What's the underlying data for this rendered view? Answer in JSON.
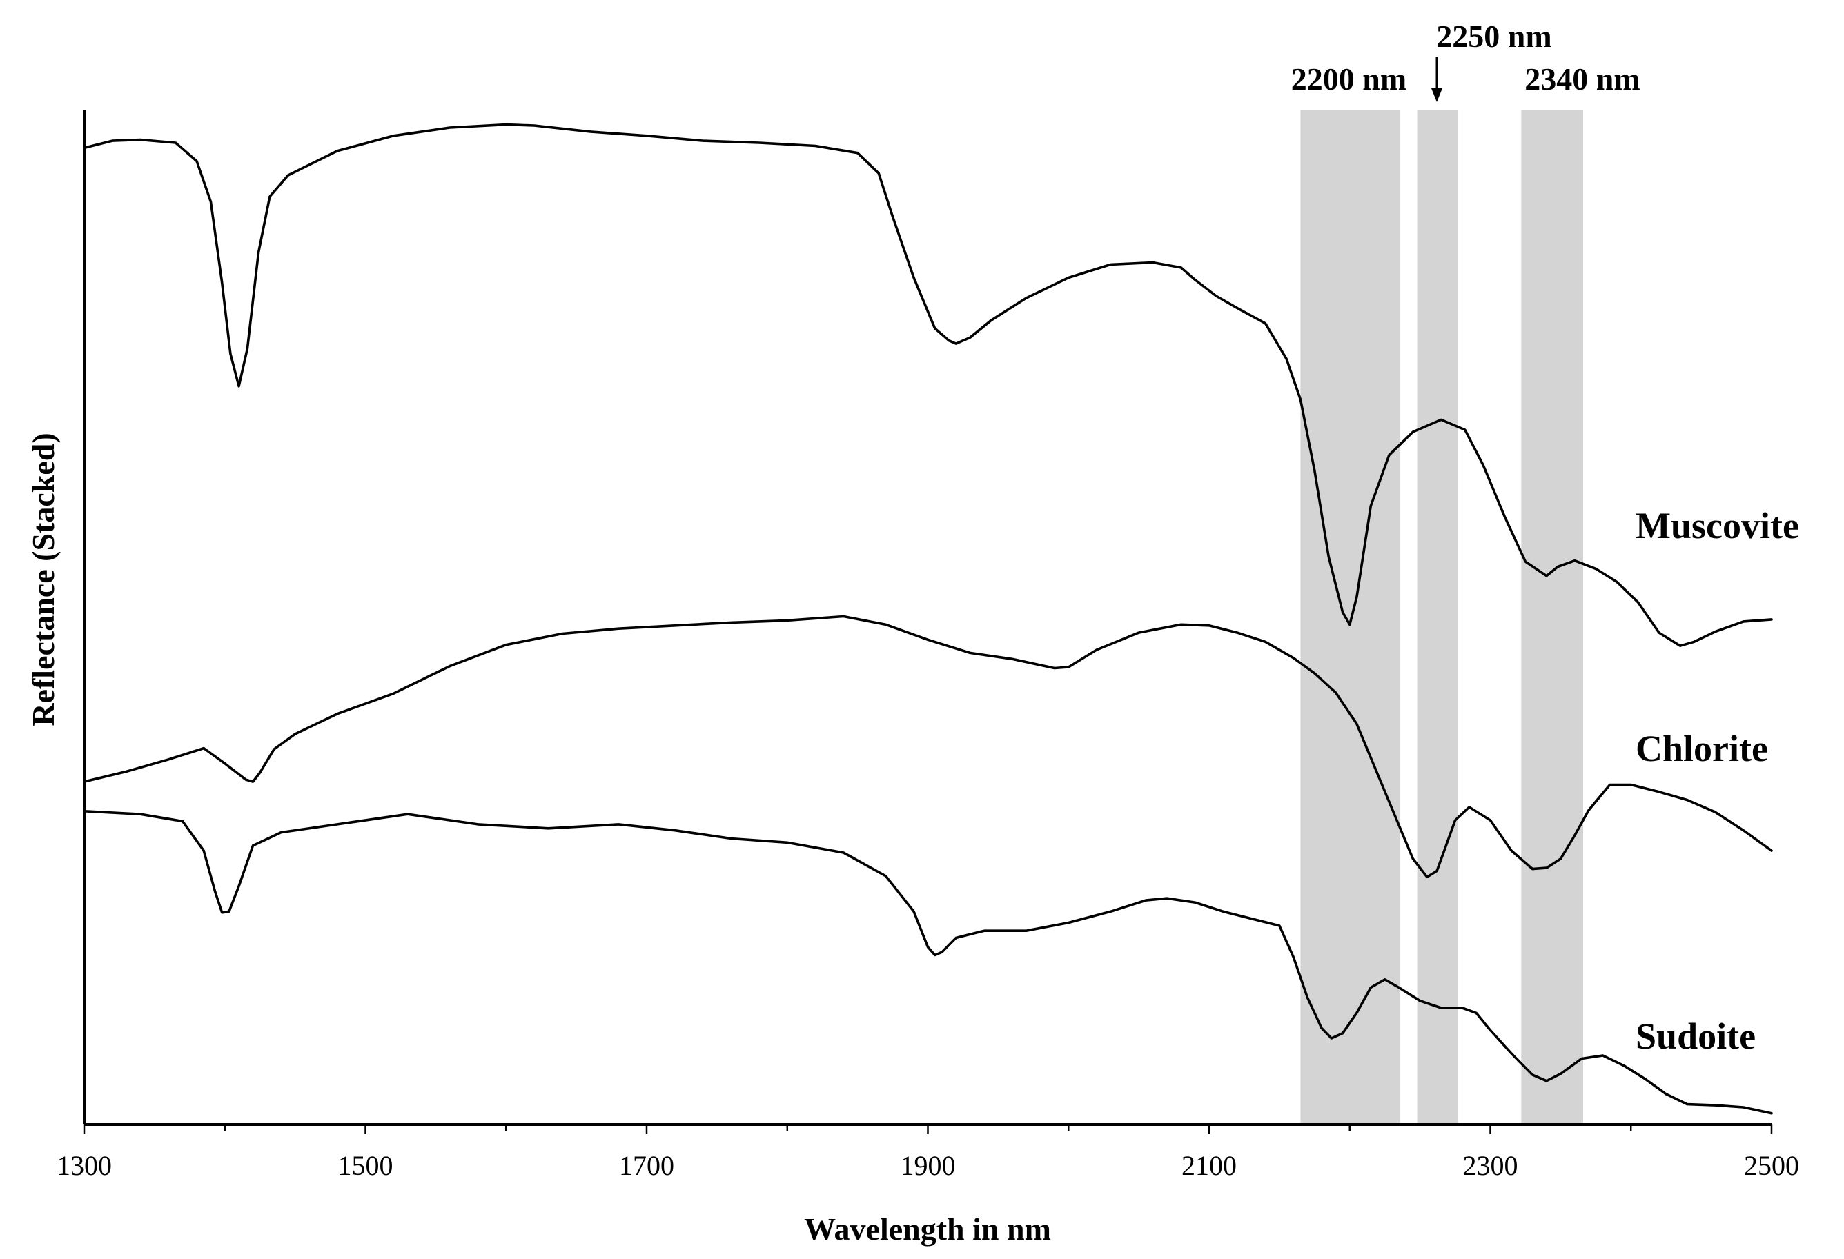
{
  "chart_data": {
    "type": "line",
    "title": "",
    "xlabel": "Wavelength in nm",
    "ylabel": "Reflectance (Stacked)",
    "xlim": [
      1300,
      2500
    ],
    "ylim": [
      0,
      100
    ],
    "xticks": [
      1300,
      1500,
      1700,
      1900,
      2100,
      2300,
      2500
    ],
    "grid": false,
    "legend": "inline labels to the right of each curve",
    "bands": [
      {
        "label": "2200 nm",
        "range": [
          2165,
          2236
        ],
        "annotation": "label"
      },
      {
        "label": "2250 nm",
        "range": [
          2248,
          2277
        ],
        "annotation": "arrow"
      },
      {
        "label": "2340 nm",
        "range": [
          2322,
          2366
        ],
        "annotation": "label"
      }
    ],
    "series": [
      {
        "name": "Muscovite",
        "x": [
          1300,
          1320,
          1340,
          1365,
          1380,
          1390,
          1398,
          1404,
          1410,
          1416,
          1424,
          1432,
          1445,
          1480,
          1520,
          1560,
          1600,
          1620,
          1660,
          1700,
          1740,
          1780,
          1820,
          1850,
          1865,
          1875,
          1890,
          1905,
          1915,
          1920,
          1930,
          1945,
          1970,
          2000,
          2030,
          2060,
          2080,
          2090,
          2105,
          2120,
          2140,
          2155,
          2165,
          2175,
          2185,
          2195,
          2200,
          2205,
          2215,
          2228,
          2245,
          2265,
          2282,
          2295,
          2310,
          2325,
          2340,
          2348,
          2360,
          2375,
          2390,
          2405,
          2420,
          2435,
          2445,
          2460,
          2480,
          2500
        ],
        "y": [
          96.3,
          97.0,
          97.1,
          96.8,
          95.0,
          91.0,
          83.0,
          76.0,
          72.8,
          76.5,
          86.0,
          91.5,
          93.6,
          96.0,
          97.5,
          98.3,
          98.6,
          98.5,
          97.9,
          97.5,
          97.0,
          96.8,
          96.5,
          95.8,
          93.8,
          89.5,
          83.5,
          78.5,
          77.3,
          77.0,
          77.6,
          79.3,
          81.5,
          83.5,
          84.8,
          85.0,
          84.5,
          83.3,
          81.7,
          80.5,
          79.0,
          75.5,
          71.5,
          64.5,
          56.0,
          50.5,
          49.3,
          52.0,
          61.0,
          66.0,
          68.3,
          69.5,
          68.5,
          65.0,
          60.0,
          55.5,
          54.1,
          55.0,
          55.6,
          54.8,
          53.5,
          51.5,
          48.5,
          47.2,
          47.6,
          48.6,
          49.6,
          49.8
        ]
      },
      {
        "name": "Chlorite",
        "x": [
          1300,
          1330,
          1360,
          1385,
          1400,
          1415,
          1420,
          1425,
          1435,
          1450,
          1480,
          1520,
          1560,
          1600,
          1640,
          1680,
          1720,
          1760,
          1800,
          1840,
          1870,
          1900,
          1930,
          1960,
          1990,
          2000,
          2020,
          2050,
          2080,
          2100,
          2120,
          2140,
          2160,
          2175,
          2190,
          2205,
          2220,
          2235,
          2245,
          2255,
          2262,
          2268,
          2275,
          2285,
          2300,
          2315,
          2330,
          2340,
          2350,
          2360,
          2370,
          2385,
          2400,
          2420,
          2440,
          2460,
          2480,
          2500
        ],
        "y": [
          33.8,
          34.8,
          36.0,
          37.1,
          35.6,
          34.0,
          33.8,
          34.7,
          37.0,
          38.5,
          40.5,
          42.5,
          45.2,
          47.3,
          48.4,
          48.9,
          49.2,
          49.5,
          49.7,
          50.1,
          49.3,
          47.8,
          46.5,
          45.9,
          45.0,
          45.1,
          46.8,
          48.5,
          49.3,
          49.2,
          48.5,
          47.6,
          46.0,
          44.5,
          42.6,
          39.5,
          34.5,
          29.5,
          26.2,
          24.4,
          25.0,
          27.3,
          30.0,
          31.3,
          30.0,
          27.0,
          25.2,
          25.3,
          26.2,
          28.5,
          31.0,
          33.5,
          33.5,
          32.8,
          32.0,
          30.8,
          29.0,
          27.0
        ]
      },
      {
        "name": "Sudoite",
        "x": [
          1300,
          1340,
          1370,
          1385,
          1393,
          1398,
          1403,
          1410,
          1420,
          1440,
          1480,
          1530,
          1580,
          1630,
          1680,
          1720,
          1760,
          1800,
          1840,
          1870,
          1890,
          1900,
          1905,
          1910,
          1920,
          1940,
          1970,
          2000,
          2030,
          2055,
          2070,
          2090,
          2110,
          2130,
          2150,
          2160,
          2170,
          2180,
          2187,
          2195,
          2205,
          2215,
          2225,
          2235,
          2250,
          2265,
          2280,
          2290,
          2300,
          2315,
          2330,
          2340,
          2350,
          2365,
          2380,
          2395,
          2410,
          2425,
          2440,
          2460,
          2480,
          2500
        ],
        "y": [
          30.9,
          30.6,
          29.9,
          27.0,
          23.0,
          20.9,
          21.0,
          23.5,
          27.5,
          28.8,
          29.6,
          30.6,
          29.6,
          29.2,
          29.6,
          29.0,
          28.2,
          27.8,
          26.8,
          24.5,
          21.0,
          17.5,
          16.7,
          17.0,
          18.4,
          19.1,
          19.1,
          19.9,
          21.0,
          22.1,
          22.3,
          21.9,
          21.0,
          20.3,
          19.6,
          16.5,
          12.5,
          9.5,
          8.5,
          9.0,
          11.0,
          13.5,
          14.3,
          13.5,
          12.2,
          11.5,
          11.5,
          11.0,
          9.3,
          7.0,
          4.9,
          4.3,
          5.0,
          6.5,
          6.8,
          5.8,
          4.5,
          3.0,
          2.0,
          1.9,
          1.7,
          1.1
        ]
      }
    ]
  }
}
